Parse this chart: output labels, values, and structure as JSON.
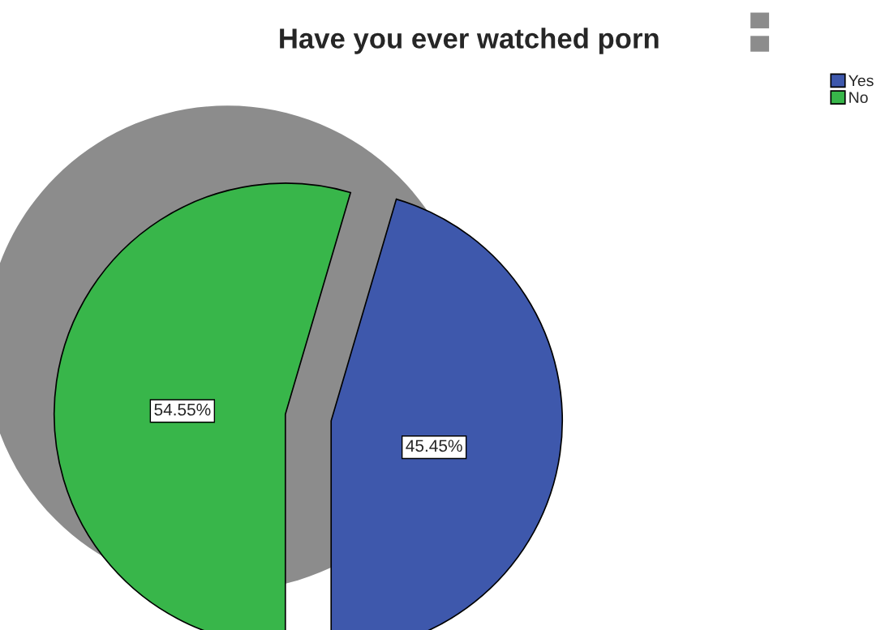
{
  "chart_data": {
    "type": "pie",
    "title": "Have you ever watched porn",
    "categories": [
      "Yes",
      "No"
    ],
    "values": [
      45.45,
      54.55
    ],
    "colors": [
      "#3e58ac",
      "#38b64a"
    ],
    "value_labels": [
      "45.45%",
      "54.55%"
    ],
    "legend": "top right"
  }
}
